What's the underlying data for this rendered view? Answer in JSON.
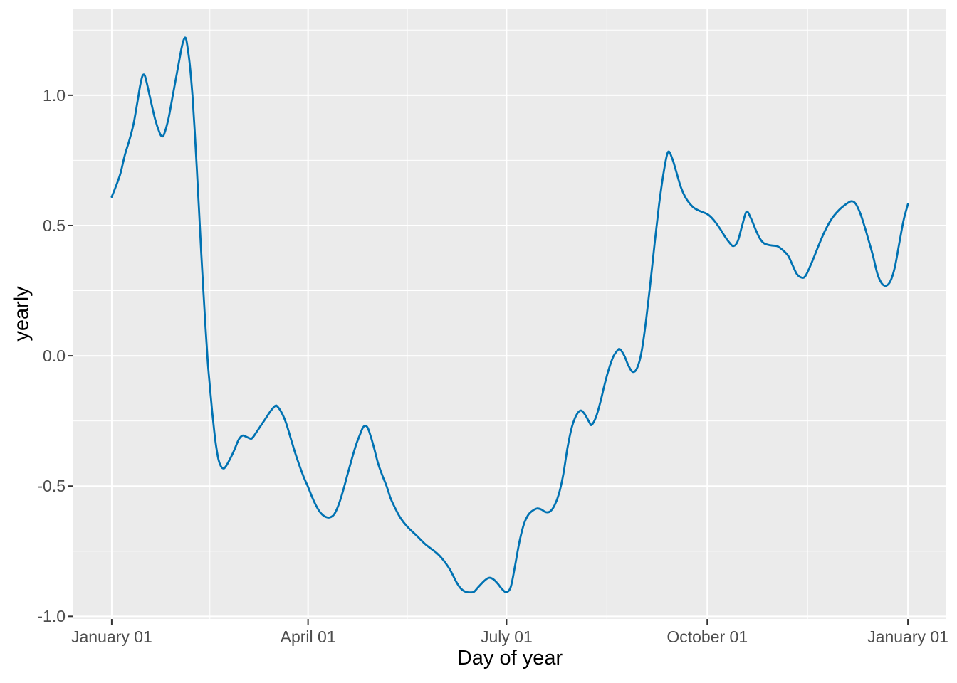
{
  "chart_data": {
    "type": "line",
    "title": "",
    "xlabel": "Day of year",
    "ylabel": "yearly",
    "grid": true,
    "legend": "none",
    "panel_bg": "#EBEBEB",
    "grid_color": "#FFFFFF",
    "tick_mark_color": "#333333",
    "tick_text_color": "#4D4D4D",
    "axis_title_color": "#000000",
    "xlim": [
      -17.6,
      382.6
    ],
    "ylim": [
      -1.01,
      1.33
    ],
    "x_ticks": [
      {
        "day": 0,
        "label": "January 01"
      },
      {
        "day": 90,
        "label": "April 01"
      },
      {
        "day": 181,
        "label": "July 01"
      },
      {
        "day": 273,
        "label": "October 01"
      },
      {
        "day": 365,
        "label": "January 01"
      }
    ],
    "x_minor": [
      45,
      135.5,
      227,
      319
    ],
    "y_ticks": [
      {
        "value": -1.0,
        "label": "-1.0"
      },
      {
        "value": -0.5,
        "label": "-0.5"
      },
      {
        "value": 0.0,
        "label": "0.0"
      },
      {
        "value": 0.5,
        "label": "0.5"
      },
      {
        "value": 1.0,
        "label": "1.0"
      }
    ],
    "y_minor": [
      -0.75,
      -0.25,
      0.25,
      0.75,
      1.25
    ],
    "series": [
      {
        "name": "yearly",
        "color": "#0072B2",
        "points": [
          [
            0,
            0.61
          ],
          [
            2,
            0.652
          ],
          [
            4,
            0.7
          ],
          [
            6,
            0.77
          ],
          [
            8,
            0.825
          ],
          [
            10,
            0.89
          ],
          [
            12,
            0.985
          ],
          [
            13,
            1.035
          ],
          [
            14,
            1.072
          ],
          [
            15,
            1.078
          ],
          [
            16,
            1.05
          ],
          [
            18,
            0.975
          ],
          [
            20,
            0.905
          ],
          [
            22,
            0.855
          ],
          [
            23,
            0.843
          ],
          [
            24,
            0.85
          ],
          [
            26,
            0.91
          ],
          [
            28,
            1.0
          ],
          [
            30,
            1.09
          ],
          [
            32,
            1.18
          ],
          [
            33,
            1.213
          ],
          [
            34,
            1.218
          ],
          [
            35,
            1.17
          ],
          [
            36,
            1.1
          ],
          [
            37,
            1.0
          ],
          [
            38,
            0.87
          ],
          [
            39,
            0.72
          ],
          [
            40,
            0.56
          ],
          [
            41,
            0.4
          ],
          [
            42,
            0.25
          ],
          [
            43,
            0.11
          ],
          [
            44,
            -0.02
          ],
          [
            45,
            -0.12
          ],
          [
            46,
            -0.21
          ],
          [
            47,
            -0.29
          ],
          [
            48,
            -0.355
          ],
          [
            49,
            -0.4
          ],
          [
            50,
            -0.423
          ],
          [
            51,
            -0.432
          ],
          [
            52,
            -0.428
          ],
          [
            54,
            -0.4
          ],
          [
            56,
            -0.365
          ],
          [
            58,
            -0.325
          ],
          [
            59,
            -0.312
          ],
          [
            60,
            -0.306
          ],
          [
            61,
            -0.308
          ],
          [
            63,
            -0.316
          ],
          [
            64,
            -0.318
          ],
          [
            65,
            -0.31
          ],
          [
            67,
            -0.285
          ],
          [
            69,
            -0.26
          ],
          [
            71,
            -0.235
          ],
          [
            73,
            -0.21
          ],
          [
            75,
            -0.192
          ],
          [
            76,
            -0.195
          ],
          [
            78,
            -0.22
          ],
          [
            80,
            -0.26
          ],
          [
            82,
            -0.315
          ],
          [
            84,
            -0.37
          ],
          [
            86,
            -0.42
          ],
          [
            88,
            -0.465
          ],
          [
            90,
            -0.503
          ],
          [
            92,
            -0.545
          ],
          [
            94,
            -0.58
          ],
          [
            96,
            -0.605
          ],
          [
            98,
            -0.618
          ],
          [
            100,
            -0.62
          ],
          [
            102,
            -0.608
          ],
          [
            104,
            -0.572
          ],
          [
            106,
            -0.52
          ],
          [
            108,
            -0.458
          ],
          [
            110,
            -0.398
          ],
          [
            112,
            -0.342
          ],
          [
            114,
            -0.298
          ],
          [
            115,
            -0.278
          ],
          [
            116,
            -0.269
          ],
          [
            117,
            -0.272
          ],
          [
            118,
            -0.29
          ],
          [
            120,
            -0.345
          ],
          [
            122,
            -0.41
          ],
          [
            124,
            -0.458
          ],
          [
            126,
            -0.5
          ],
          [
            128,
            -0.55
          ],
          [
            131,
            -0.602
          ],
          [
            133,
            -0.63
          ],
          [
            136,
            -0.66
          ],
          [
            140,
            -0.692
          ],
          [
            144,
            -0.725
          ],
          [
            149,
            -0.757
          ],
          [
            152,
            -0.784
          ],
          [
            155,
            -0.82
          ],
          [
            158,
            -0.868
          ],
          [
            160,
            -0.893
          ],
          [
            162,
            -0.905
          ],
          [
            164,
            -0.908
          ],
          [
            166,
            -0.906
          ],
          [
            168,
            -0.888
          ],
          [
            171,
            -0.862
          ],
          [
            173,
            -0.852
          ],
          [
            175,
            -0.858
          ],
          [
            177,
            -0.875
          ],
          [
            179,
            -0.896
          ],
          [
            181,
            -0.907
          ],
          [
            183,
            -0.885
          ],
          [
            185,
            -0.8
          ],
          [
            187,
            -0.71
          ],
          [
            189,
            -0.645
          ],
          [
            191,
            -0.61
          ],
          [
            193,
            -0.594
          ],
          [
            195,
            -0.586
          ],
          [
            197,
            -0.59
          ],
          [
            199,
            -0.6
          ],
          [
            201,
            -0.597
          ],
          [
            203,
            -0.574
          ],
          [
            205,
            -0.53
          ],
          [
            207,
            -0.455
          ],
          [
            209,
            -0.35
          ],
          [
            211,
            -0.272
          ],
          [
            213,
            -0.228
          ],
          [
            215,
            -0.21
          ],
          [
            217,
            -0.226
          ],
          [
            219,
            -0.256
          ],
          [
            220,
            -0.265
          ],
          [
            222,
            -0.235
          ],
          [
            224,
            -0.178
          ],
          [
            226,
            -0.108
          ],
          [
            228,
            -0.048
          ],
          [
            230,
            -0.002
          ],
          [
            232,
            0.022
          ],
          [
            233,
            0.025
          ],
          [
            235,
            0.0
          ],
          [
            237,
            -0.04
          ],
          [
            239,
            -0.062
          ],
          [
            241,
            -0.044
          ],
          [
            243,
            0.02
          ],
          [
            245,
            0.14
          ],
          [
            247,
            0.285
          ],
          [
            249,
            0.44
          ],
          [
            251,
            0.585
          ],
          [
            253,
            0.703
          ],
          [
            255,
            0.782
          ],
          [
            257,
            0.756
          ],
          [
            259,
            0.7
          ],
          [
            261,
            0.645
          ],
          [
            263,
            0.608
          ],
          [
            265,
            0.584
          ],
          [
            267,
            0.567
          ],
          [
            269,
            0.558
          ],
          [
            271,
            0.551
          ],
          [
            273,
            0.544
          ],
          [
            275,
            0.53
          ],
          [
            277,
            0.51
          ],
          [
            279,
            0.486
          ],
          [
            281,
            0.459
          ],
          [
            283,
            0.436
          ],
          [
            285,
            0.421
          ],
          [
            287,
            0.44
          ],
          [
            289,
            0.5
          ],
          [
            291,
            0.553
          ],
          [
            293,
            0.528
          ],
          [
            295,
            0.488
          ],
          [
            297,
            0.452
          ],
          [
            299,
            0.432
          ],
          [
            302,
            0.424
          ],
          [
            305,
            0.421
          ],
          [
            307,
            0.41
          ],
          [
            310,
            0.385
          ],
          [
            312,
            0.35
          ],
          [
            314,
            0.315
          ],
          [
            316,
            0.301
          ],
          [
            318,
            0.306
          ],
          [
            321,
            0.36
          ],
          [
            324,
            0.422
          ],
          [
            327,
            0.48
          ],
          [
            330,
            0.525
          ],
          [
            333,
            0.556
          ],
          [
            336,
            0.578
          ],
          [
            339,
            0.593
          ],
          [
            341,
            0.584
          ],
          [
            343,
            0.55
          ],
          [
            345,
            0.5
          ],
          [
            347,
            0.443
          ],
          [
            349,
            0.383
          ],
          [
            351,
            0.315
          ],
          [
            353,
            0.278
          ],
          [
            355,
            0.269
          ],
          [
            357,
            0.287
          ],
          [
            359,
            0.34
          ],
          [
            361,
            0.43
          ],
          [
            363,
            0.52
          ],
          [
            365,
            0.582
          ]
        ]
      }
    ]
  }
}
